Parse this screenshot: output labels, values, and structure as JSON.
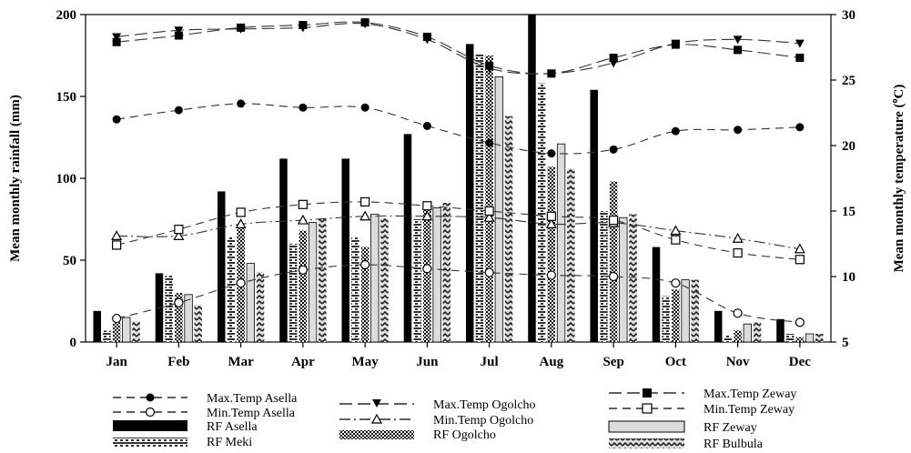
{
  "chart_data": {
    "type": "bar+line",
    "categories": [
      "Jan",
      "Feb",
      "Mar",
      "Apr",
      "May",
      "Jun",
      "Jul",
      "Aug",
      "Sep",
      "Oct",
      "Nov",
      "Dec"
    ],
    "ylabel": "Mean monthly rainfall (mm)",
    "ylabel2_main": "Mean monthly temperature (",
    "ylabel2_sup": "o",
    "ylabel2_end": "C)",
    "ylim": [
      0,
      200
    ],
    "y_ticks": [
      "0",
      "50",
      "100",
      "150",
      "200"
    ],
    "y2lim": [
      5,
      30
    ],
    "y2_ticks": [
      "5",
      "10",
      "15",
      "20",
      "25",
      "30"
    ],
    "bar_series": [
      {
        "name": "RF Asella",
        "pattern": "solid-black",
        "values": [
          19,
          42,
          92,
          112,
          112,
          127,
          182,
          200,
          154,
          58,
          19,
          14
        ]
      },
      {
        "name": "RF Meki",
        "pattern": "bricks",
        "values": [
          7,
          41,
          64,
          60,
          64,
          75,
          176,
          158,
          80,
          28,
          4,
          5
        ]
      },
      {
        "name": "RF Ogolcho",
        "pattern": "checker",
        "values": [
          12,
          30,
          70,
          68,
          58,
          82,
          175,
          107,
          98,
          32,
          7,
          3
        ]
      },
      {
        "name": "RF Zeway",
        "pattern": "light-gray",
        "values": [
          15,
          29,
          48,
          73,
          78,
          82,
          162,
          121,
          76,
          38,
          11,
          5
        ]
      },
      {
        "name": "RF Bulbula",
        "pattern": "zigzag",
        "values": [
          13,
          23,
          43,
          76,
          76,
          85,
          138,
          106,
          78,
          38,
          12,
          5
        ]
      }
    ],
    "line_series": [
      {
        "name": "Max.Temp Asella",
        "marker": "filled-circle",
        "dash": "dash",
        "values": [
          22,
          22.7,
          23.2,
          22.9,
          22.9,
          21.5,
          20.2,
          19.4,
          19.7,
          21.1,
          21.2,
          21.4
        ]
      },
      {
        "name": "Min.Temp Asella",
        "marker": "open-circle",
        "dash": "dash",
        "values": [
          6.8,
          8,
          9.5,
          10.5,
          10.9,
          10.6,
          10.3,
          10.1,
          10,
          9.5,
          7.2,
          6.5
        ]
      },
      {
        "name": "Max.Temp Ogolcho",
        "marker": "filled-triangle-down",
        "dash": "long-dash",
        "values": [
          28.3,
          28.8,
          28.9,
          29,
          29.3,
          28.1,
          25.9,
          25.5,
          26.3,
          27.8,
          28.1,
          27.8
        ]
      },
      {
        "name": "Min.Temp Ogolcho",
        "marker": "open-triangle-up",
        "dash": "dash-dot",
        "values": [
          13.1,
          13.1,
          14,
          14.3,
          14.6,
          14.6,
          14.5,
          14,
          14.1,
          13.5,
          12.9,
          12.1
        ]
      },
      {
        "name": "Max.Temp Zeway",
        "marker": "filled-square",
        "dash": "long-dash",
        "values": [
          27.9,
          28.4,
          29,
          29.2,
          29.4,
          28.3,
          26.1,
          25.5,
          26.7,
          27.7,
          27.3,
          26.7
        ]
      },
      {
        "name": "Min.Temp Zeway",
        "marker": "open-square",
        "dash": "dash",
        "values": [
          12.4,
          13.6,
          14.9,
          15.5,
          15.7,
          15.4,
          15,
          14.6,
          14.3,
          12.8,
          11.8,
          11.3
        ]
      }
    ],
    "legend": {
      "col1": [
        "Max.Temp Asella",
        "Min.Temp Asella",
        "RF  Asella",
        "RF   Meki"
      ],
      "col2": [
        "Max.Temp Ogolcho",
        "Min.Temp Ogolcho",
        "RF Ogolcho"
      ],
      "col3": [
        "Max.Temp Zeway",
        "Min.Temp Zeway",
        "RF  Zeway",
        "RF  Bulbula"
      ]
    }
  }
}
